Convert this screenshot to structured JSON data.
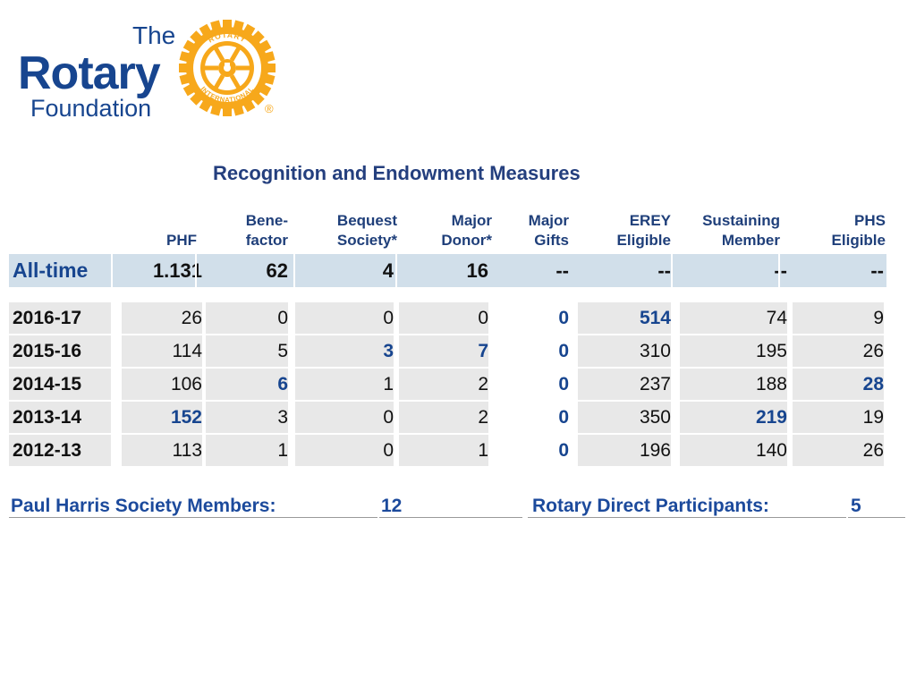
{
  "logo": {
    "the": "The",
    "rotary": "Rotary",
    "foundation": "Foundation",
    "wheel_text_top": "ROTARY",
    "wheel_text_bottom": "INTERNATIONAL",
    "registered": "®",
    "colors": {
      "blue": "#17458f",
      "gold": "#f7a81b"
    }
  },
  "title": "Recognition and Endowment Measures",
  "columns": [
    {
      "line1": "",
      "line2": "PHF"
    },
    {
      "line1": "Bene-",
      "line2": "factor"
    },
    {
      "line1": "Bequest",
      "line2": "Society*"
    },
    {
      "line1": "Major",
      "line2": "Donor*"
    },
    {
      "line1": "Major",
      "line2": "Gifts"
    },
    {
      "line1": "EREY",
      "line2": "Eligible"
    },
    {
      "line1": "Sustaining",
      "line2": "Member"
    },
    {
      "line1": "PHS",
      "line2": "Eligible"
    }
  ],
  "all_time": {
    "label": "All-time",
    "values": [
      "1.131",
      "62",
      "4",
      "16",
      "--",
      "--",
      "--",
      "--"
    ]
  },
  "years": [
    {
      "label": "2016-17",
      "values": [
        "26",
        "0",
        "0",
        "0",
        "0",
        "514",
        "74",
        "9"
      ]
    },
    {
      "label": "2015-16",
      "values": [
        "114",
        "5",
        "3",
        "7",
        "0",
        "310",
        "195",
        "26"
      ]
    },
    {
      "label": "2014-15",
      "values": [
        "106",
        "6",
        "1",
        "2",
        "0",
        "237",
        "188",
        "28"
      ]
    },
    {
      "label": "2013-14",
      "values": [
        "152",
        "3",
        "0",
        "2",
        "0",
        "350",
        "219",
        "19"
      ]
    },
    {
      "label": "2012-13",
      "values": [
        "113",
        "1",
        "0",
        "1",
        "0",
        "196",
        "140",
        "26"
      ]
    }
  ],
  "highlighted_cells": [
    [
      0,
      4
    ],
    [
      0,
      5
    ],
    [
      1,
      2
    ],
    [
      1,
      3
    ],
    [
      1,
      4
    ],
    [
      2,
      1
    ],
    [
      2,
      4
    ],
    [
      2,
      7
    ],
    [
      3,
      0
    ],
    [
      3,
      4
    ],
    [
      3,
      6
    ],
    [
      4,
      4
    ]
  ],
  "footer": {
    "phs_label": "Paul Harris Society Members:",
    "phs_value": "12",
    "rd_label": "Rotary Direct Participants:",
    "rd_value": "5"
  },
  "colors": {
    "header_text": "#1f3f7a",
    "alltime_bg": "#d1dfea",
    "row_bg": "#e8e8e8",
    "highlight": "#17458f",
    "footer_text": "#1c4a9c"
  }
}
